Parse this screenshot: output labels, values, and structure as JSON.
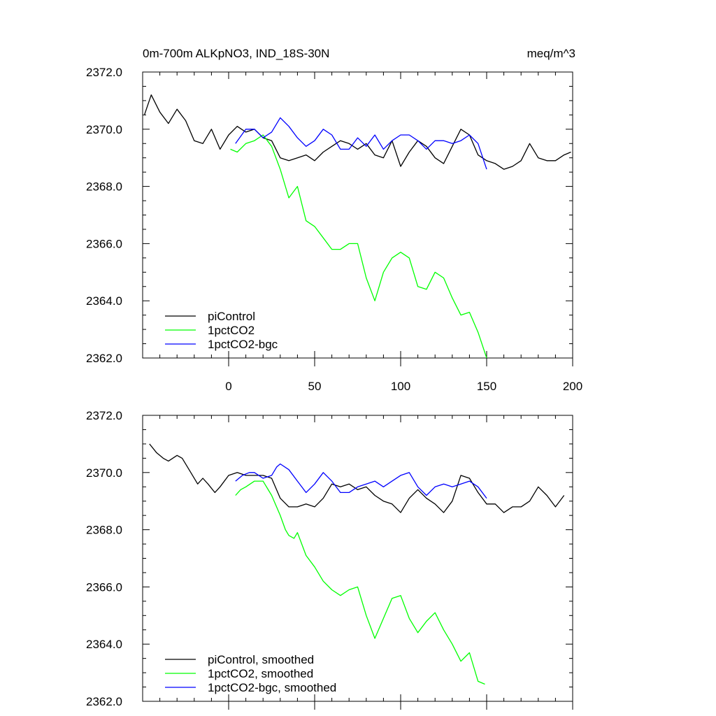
{
  "chart_data": [
    {
      "type": "line",
      "title_left": "0m-700m ALKpNO3, IND_18S-30N",
      "title_right": "meq/m^3",
      "xlabel": "",
      "ylabel": "",
      "xlim": [
        -50,
        200
      ],
      "ylim": [
        2362,
        2372
      ],
      "yticks": [
        "2362.0",
        "2364.0",
        "2366.0",
        "2368.0",
        "2370.0",
        "2372.0"
      ],
      "xticks": [
        "0",
        "50",
        "100",
        "150",
        "200"
      ],
      "legend": [
        "piControl",
        "1pctCO2",
        "1pctCO2-bgc"
      ],
      "series": [
        {
          "name": "piControl",
          "color": "#000000",
          "x": [
            -49,
            -45,
            -40,
            -35,
            -30,
            -25,
            -20,
            -15,
            -10,
            -5,
            0,
            5,
            10,
            15,
            20,
            25,
            30,
            35,
            40,
            45,
            50,
            55,
            60,
            65,
            70,
            75,
            80,
            85,
            90,
            95,
            100,
            105,
            110,
            115,
            120,
            125,
            130,
            135,
            140,
            145,
            150,
            155,
            160,
            165,
            170,
            175,
            180,
            185,
            190,
            195,
            199
          ],
          "values": [
            2370.5,
            2371.2,
            2370.6,
            2370.2,
            2370.7,
            2370.3,
            2369.6,
            2369.5,
            2370.0,
            2369.3,
            2369.8,
            2370.1,
            2369.9,
            2370.0,
            2369.7,
            2369.6,
            2369.0,
            2368.9,
            2369.0,
            2369.1,
            2368.9,
            2369.2,
            2369.4,
            2369.6,
            2369.5,
            2369.3,
            2369.5,
            2369.1,
            2369.0,
            2369.6,
            2368.7,
            2369.2,
            2369.6,
            2369.4,
            2369.0,
            2368.8,
            2369.4,
            2370.0,
            2369.8,
            2369.1,
            2368.9,
            2368.8,
            2368.6,
            2368.7,
            2368.9,
            2369.5,
            2369.0,
            2368.9,
            2368.9,
            2369.1,
            2369.2
          ]
        },
        {
          "name": "1pctCO2",
          "color": "#00ff00",
          "x": [
            1,
            5,
            10,
            15,
            20,
            25,
            30,
            35,
            40,
            45,
            50,
            55,
            60,
            65,
            70,
            75,
            80,
            85,
            90,
            95,
            100,
            105,
            110,
            115,
            120,
            125,
            130,
            135,
            140,
            145,
            150
          ],
          "values": [
            2369.3,
            2369.2,
            2369.5,
            2369.6,
            2369.8,
            2369.4,
            2368.6,
            2367.6,
            2368.0,
            2366.8,
            2366.6,
            2366.2,
            2365.8,
            2365.8,
            2366.0,
            2366.0,
            2364.8,
            2364.0,
            2365.0,
            2365.5,
            2365.7,
            2365.5,
            2364.5,
            2364.4,
            2365.0,
            2364.8,
            2364.1,
            2363.5,
            2363.6,
            2362.9,
            2362.0
          ]
        },
        {
          "name": "1pctCO2-bgc",
          "color": "#0000ff",
          "x": [
            4,
            10,
            15,
            20,
            25,
            30,
            35,
            40,
            45,
            50,
            55,
            60,
            65,
            70,
            75,
            80,
            85,
            90,
            95,
            100,
            105,
            110,
            115,
            120,
            125,
            130,
            135,
            140,
            145,
            150
          ],
          "values": [
            2369.5,
            2370.0,
            2370.0,
            2369.7,
            2369.9,
            2370.4,
            2370.1,
            2369.7,
            2369.4,
            2369.6,
            2370.0,
            2369.8,
            2369.3,
            2369.3,
            2369.7,
            2369.4,
            2369.8,
            2369.3,
            2369.6,
            2369.8,
            2369.8,
            2369.6,
            2369.3,
            2369.6,
            2369.6,
            2369.5,
            2369.6,
            2369.8,
            2369.5,
            2368.6
          ]
        }
      ]
    },
    {
      "type": "line",
      "xlabel": "",
      "ylabel": "",
      "xlim": [
        -50,
        200
      ],
      "ylim": [
        2362,
        2372
      ],
      "yticks": [
        "2362.0",
        "2364.0",
        "2366.0",
        "2368.0",
        "2370.0",
        "2372.0"
      ],
      "legend": [
        "piControl, smoothed",
        "1pctCO2, smoothed",
        "1pctCO2-bgc, smoothed"
      ],
      "series": [
        {
          "name": "piControl, smoothed",
          "color": "#000000",
          "x": [
            -46,
            -42,
            -38,
            -35,
            -30,
            -27,
            -22,
            -18,
            -15,
            -12,
            -8,
            -5,
            0,
            5,
            10,
            15,
            20,
            25,
            30,
            35,
            40,
            45,
            50,
            55,
            60,
            65,
            70,
            75,
            80,
            85,
            90,
            95,
            100,
            105,
            110,
            115,
            120,
            125,
            130,
            135,
            140,
            145,
            150,
            155,
            160,
            165,
            170,
            175,
            180,
            185,
            190,
            195
          ],
          "values": [
            2371.0,
            2370.7,
            2370.5,
            2370.4,
            2370.6,
            2370.5,
            2370.0,
            2369.6,
            2369.8,
            2369.6,
            2369.3,
            2369.5,
            2369.9,
            2370.0,
            2369.9,
            2369.9,
            2369.9,
            2369.8,
            2369.1,
            2368.8,
            2368.8,
            2368.9,
            2368.8,
            2369.1,
            2369.6,
            2369.5,
            2369.6,
            2369.4,
            2369.5,
            2369.2,
            2369.0,
            2368.9,
            2368.6,
            2369.1,
            2369.4,
            2369.1,
            2368.9,
            2368.6,
            2369.0,
            2369.9,
            2369.8,
            2369.3,
            2368.9,
            2368.9,
            2368.6,
            2368.8,
            2368.8,
            2369.0,
            2369.5,
            2369.2,
            2368.8,
            2369.2
          ]
        },
        {
          "name": "1pctCO2, smoothed",
          "color": "#00ff00",
          "x": [
            4,
            7,
            10,
            15,
            20,
            25,
            30,
            33,
            35,
            38,
            40,
            45,
            50,
            55,
            60,
            65,
            70,
            75,
            80,
            85,
            90,
            95,
            100,
            105,
            110,
            115,
            120,
            125,
            130,
            135,
            140,
            145,
            149
          ],
          "values": [
            2369.2,
            2369.4,
            2369.5,
            2369.7,
            2369.7,
            2369.2,
            2368.5,
            2368.0,
            2367.8,
            2367.7,
            2367.9,
            2367.1,
            2366.7,
            2366.2,
            2365.9,
            2365.7,
            2365.9,
            2366.0,
            2365.0,
            2364.2,
            2364.9,
            2365.6,
            2365.7,
            2364.9,
            2364.4,
            2364.8,
            2365.1,
            2364.5,
            2364.0,
            2363.4,
            2363.7,
            2362.7,
            2362.6
          ]
        },
        {
          "name": "1pctCO2-bgc, smoothed",
          "color": "#0000ff",
          "x": [
            4,
            8,
            12,
            15,
            20,
            25,
            28,
            30,
            35,
            40,
            45,
            50,
            55,
            60,
            65,
            70,
            75,
            80,
            85,
            90,
            95,
            100,
            105,
            110,
            115,
            120,
            125,
            130,
            135,
            140,
            145,
            150
          ],
          "values": [
            2369.7,
            2369.9,
            2370.0,
            2370.0,
            2369.8,
            2369.9,
            2370.2,
            2370.3,
            2370.1,
            2369.7,
            2369.3,
            2369.6,
            2370.0,
            2369.7,
            2369.3,
            2369.3,
            2369.5,
            2369.6,
            2369.7,
            2369.5,
            2369.7,
            2369.9,
            2370.0,
            2369.5,
            2369.2,
            2369.5,
            2369.6,
            2369.5,
            2369.6,
            2369.7,
            2369.5,
            2369.1
          ]
        }
      ]
    }
  ]
}
